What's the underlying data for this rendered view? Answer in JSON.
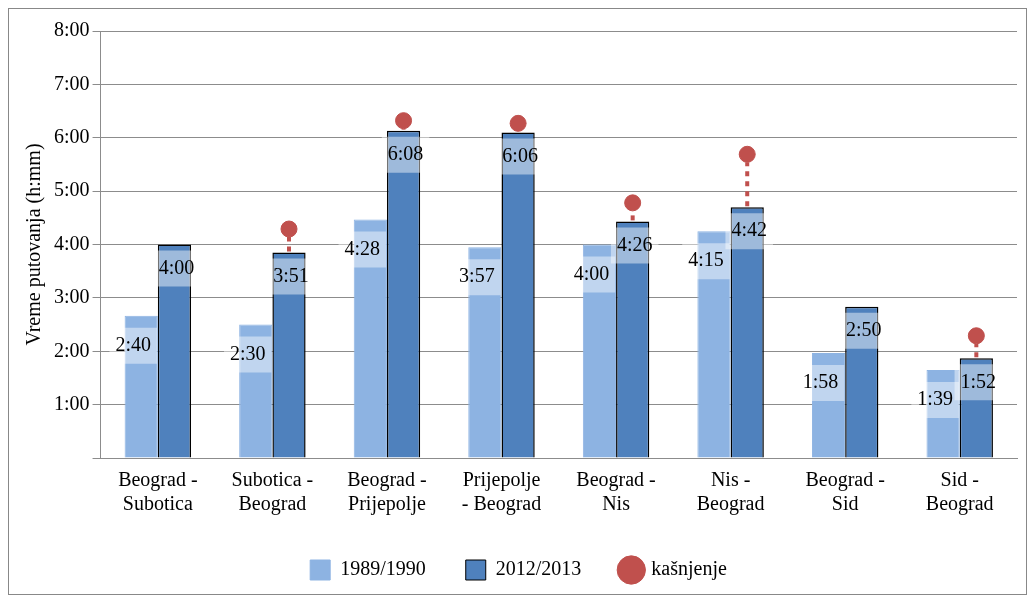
{
  "chart_data": {
    "type": "bar",
    "ylabel": "Vreme putovanja (h:mm)",
    "categories": [
      "Beograd - Subotica",
      "Subotica - Beograd",
      "Beograd - Prijepolje",
      "Prijepolje - Beograd",
      "Beograd - Nis",
      "Nis - Beograd",
      "Beograd - Sid",
      "Sid - Beograd"
    ],
    "series": [
      {
        "name": "1989/1990",
        "color": "#8db3e2",
        "values": [
          2.667,
          2.5,
          4.467,
          3.95,
          4,
          4.25,
          1.967,
          1.65
        ],
        "value_labels": [
          "2:40",
          "2:30",
          "4:28",
          "3:57",
          "4:00",
          "4:15",
          "1:58",
          "1:39"
        ]
      },
      {
        "name": "2012/2013",
        "color": "#4f81bd",
        "values": [
          4,
          3.85,
          6.133,
          6.1,
          4.433,
          4.7,
          2.833,
          1.867
        ],
        "value_labels": [
          "4:00",
          "3:51",
          "6:08",
          "6:06",
          "4:26",
          "4:42",
          "2:50",
          "1:52"
        ]
      },
      {
        "name": "kašnjenje",
        "type": "scatter",
        "color": "#c0504d",
        "marker": "circle",
        "x": [
          "Subotica - Beograd",
          "Beograd - Prijepolje",
          "Prijepolje - Beograd",
          "Beograd - Nis",
          "Nis - Beograd",
          "Sid - Beograd"
        ],
        "values": [
          4.29,
          6.32,
          6.27,
          4.78,
          5.69,
          2.29
        ]
      }
    ],
    "ylim": [
      0,
      8
    ],
    "yticks": [
      {
        "value": 0,
        "label": null
      },
      {
        "value": 1,
        "label": "1:00"
      },
      {
        "value": 2,
        "label": "2:00"
      },
      {
        "value": 3,
        "label": "3:00"
      },
      {
        "value": 4,
        "label": "4:00"
      },
      {
        "value": 5,
        "label": "5:00"
      },
      {
        "value": 6,
        "label": "6:00"
      },
      {
        "value": 7,
        "label": "7:00"
      },
      {
        "value": 8,
        "label": "8:00"
      }
    ],
    "grid": "y",
    "legend": "bottom"
  }
}
